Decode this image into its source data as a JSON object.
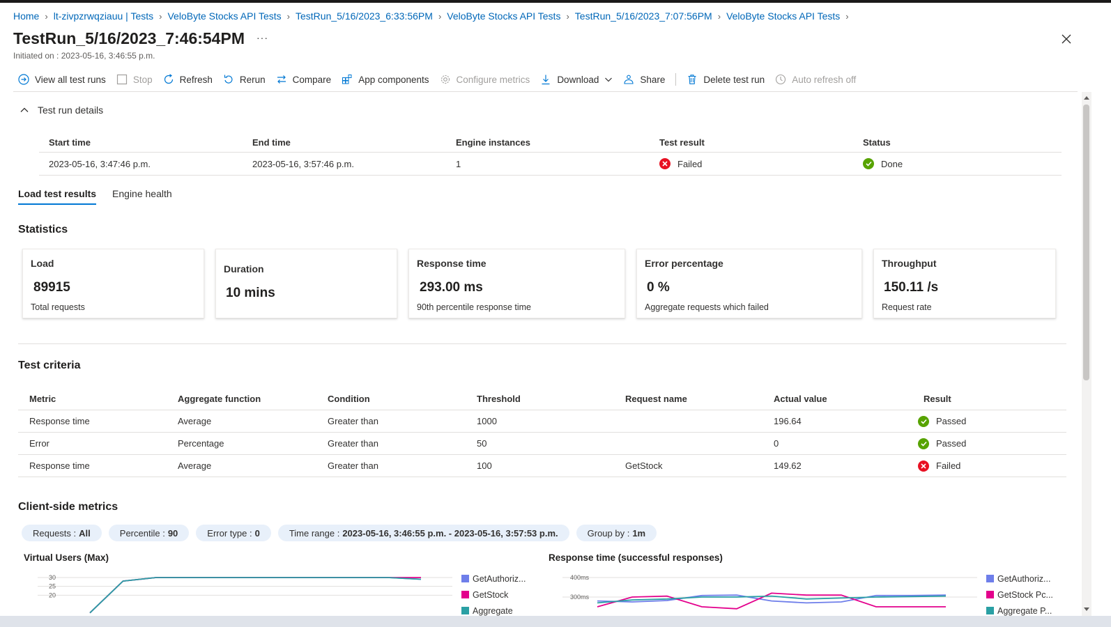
{
  "breadcrumb": [
    "Home",
    "lt-zivpzrwqziauu | Tests",
    "VeloByte Stocks API Tests",
    "TestRun_5/16/2023_6:33:56PM",
    "VeloByte Stocks API Tests",
    "TestRun_5/16/2023_7:07:56PM",
    "VeloByte Stocks API Tests"
  ],
  "header": {
    "title": "TestRun_5/16/2023_7:46:54PM",
    "more": "···",
    "initiated": "Initiated on : 2023-05-16, 3:46:55 p.m."
  },
  "toolbar": {
    "view_all": "View all test runs",
    "stop": "Stop",
    "refresh": "Refresh",
    "rerun": "Rerun",
    "compare": "Compare",
    "app_components": "App components",
    "configure_metrics": "Configure metrics",
    "download": "Download",
    "share": "Share",
    "delete": "Delete test run",
    "auto_refresh": "Auto refresh off"
  },
  "details": {
    "toggle_label": "Test run details",
    "headers": [
      "Start time",
      "End time",
      "Engine instances",
      "Test result",
      "Status"
    ],
    "start_time": "2023-05-16, 3:47:46 p.m.",
    "end_time": "2023-05-16, 3:57:46 p.m.",
    "engine_instances": "1",
    "test_result": "Failed",
    "status": "Done"
  },
  "tabs": [
    "Load test results",
    "Engine health"
  ],
  "statistics": {
    "heading": "Statistics",
    "cards": [
      {
        "label": "Load",
        "value": "89915",
        "sub": "Total requests"
      },
      {
        "label": "Duration",
        "value": "10 mins",
        "sub": ""
      },
      {
        "label": "Response time",
        "value": "293.00 ms",
        "sub": "90th percentile response time"
      },
      {
        "label": "Error percentage",
        "value": "0 %",
        "sub": "Aggregate requests which failed"
      },
      {
        "label": "Throughput",
        "value": "150.11 /s",
        "sub": "Request rate"
      }
    ]
  },
  "criteria": {
    "heading": "Test criteria",
    "headers": [
      "Metric",
      "Aggregate function",
      "Condition",
      "Threshold",
      "Request name",
      "Actual value",
      "Result"
    ],
    "rows": [
      [
        "Response time",
        "Average",
        "Greater than",
        "1000",
        "",
        "196.64",
        "Passed"
      ],
      [
        "Error",
        "Percentage",
        "Greater than",
        "50",
        "",
        "0",
        "Passed"
      ],
      [
        "Response time",
        "Average",
        "Greater than",
        "100",
        "GetStock",
        "149.62",
        "Failed"
      ]
    ]
  },
  "client_metrics": {
    "heading": "Client-side metrics",
    "filters": [
      {
        "label": "Requests :",
        "value": "All"
      },
      {
        "label": "Percentile :",
        "value": "90"
      },
      {
        "label": "Error type :",
        "value": "0"
      },
      {
        "label": "Time range :",
        "value": "2023-05-16, 3:46:55 p.m. - 2023-05-16, 3:57:53 p.m."
      },
      {
        "label": "Group by :",
        "value": "1m"
      }
    ]
  },
  "colors": {
    "accent": "#0078d4",
    "link": "#0067b8",
    "pass": "#57a300",
    "fail": "#e81123",
    "series_auth": "#6e7eea",
    "series_stock": "#e3008c",
    "series_aggregate": "#2aa0a4"
  },
  "chart_data": [
    {
      "type": "line",
      "title": "Virtual Users (Max)",
      "y_ticks": [
        "30",
        "25",
        "20"
      ],
      "ylim": [
        15,
        30
      ],
      "legend_position": "right",
      "legend": [
        "GetAuthoriz...",
        "GetStock",
        "Aggregate"
      ],
      "series": [
        {
          "name": "GetAuthoriz...",
          "values": [
            10,
            28,
            30,
            30,
            30,
            30,
            30,
            30,
            30,
            30,
            29
          ]
        },
        {
          "name": "GetStock",
          "values": [
            10,
            28,
            30,
            30,
            30,
            30,
            30,
            30,
            30,
            30,
            30
          ]
        },
        {
          "name": "Aggregate",
          "values": [
            10,
            28,
            30,
            30,
            30,
            30,
            30,
            30,
            30,
            30,
            29
          ]
        }
      ]
    },
    {
      "type": "line",
      "title": "Response time (successful responses)",
      "y_ticks": [
        "400ms",
        "300ms"
      ],
      "ylim": [
        200,
        400
      ],
      "legend_position": "right",
      "legend": [
        "GetAuthoriz...",
        "GetStock Pc...",
        "Aggregate P..."
      ],
      "series": [
        {
          "name": "GetAuthoriz...",
          "values": [
            280,
            275,
            282,
            308,
            310,
            280,
            270,
            275,
            308,
            308,
            310
          ]
        },
        {
          "name": "GetStock Pc...",
          "values": [
            250,
            300,
            305,
            250,
            240,
            320,
            310,
            310,
            250,
            250,
            250
          ]
        },
        {
          "name": "Aggregate P...",
          "values": [
            270,
            285,
            290,
            300,
            300,
            305,
            290,
            295,
            300,
            302,
            305
          ]
        }
      ]
    }
  ]
}
